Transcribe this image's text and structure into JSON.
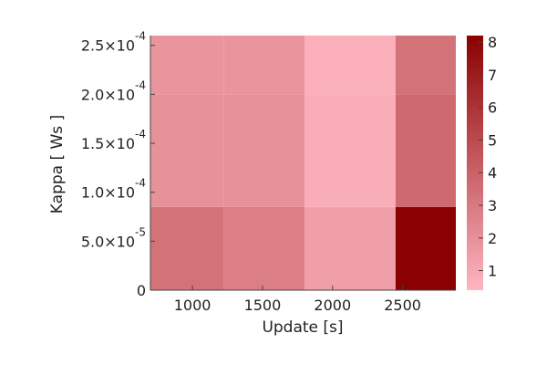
{
  "chart_data": {
    "type": "heatmap",
    "xlabel": "Update [s]",
    "ylabel": "Kappa [ Ws ]",
    "x_tick_labels": [
      "1000",
      "1500",
      "2000",
      "2500"
    ],
    "x_tick_values": [
      1000,
      1500,
      2000,
      2500
    ],
    "y_tick_labels": [
      {
        "base": "0",
        "exp": ""
      },
      {
        "base": "5.0×10",
        "exp": "-5"
      },
      {
        "base": "1.0×10",
        "exp": "-4"
      },
      {
        "base": "1.5×10",
        "exp": "-4"
      },
      {
        "base": "2.0×10",
        "exp": "-4"
      },
      {
        "base": "2.5×10",
        "exp": "-4"
      }
    ],
    "y_tick_values": [
      0,
      5e-05,
      0.0001,
      0.00015,
      0.0002,
      0.00025
    ],
    "xlim": [
      700,
      2880
    ],
    "ylim": [
      0,
      0.00026
    ],
    "x_edges": [
      700,
      1225,
      1800,
      2450,
      2880
    ],
    "y_edges": [
      0,
      8.5e-05,
      0.0002,
      0.00026
    ],
    "rows": [
      {
        "values": [
          3.3,
          2.8,
          1.4,
          8.2
        ]
      },
      {
        "values": [
          2.0,
          2.0,
          0.8,
          3.7
        ]
      },
      {
        "values": [
          1.8,
          1.8,
          0.7,
          3.3
        ]
      }
    ],
    "colorbar": {
      "range": [
        0.4,
        8.2
      ],
      "tick_values": [
        1,
        2,
        3,
        4,
        5,
        6,
        7,
        8
      ],
      "tick_labels": [
        "1",
        "2",
        "3",
        "4",
        "5",
        "6",
        "7",
        "8"
      ],
      "color_low": "#ffb6c1",
      "color_high": "#8b0000"
    }
  }
}
